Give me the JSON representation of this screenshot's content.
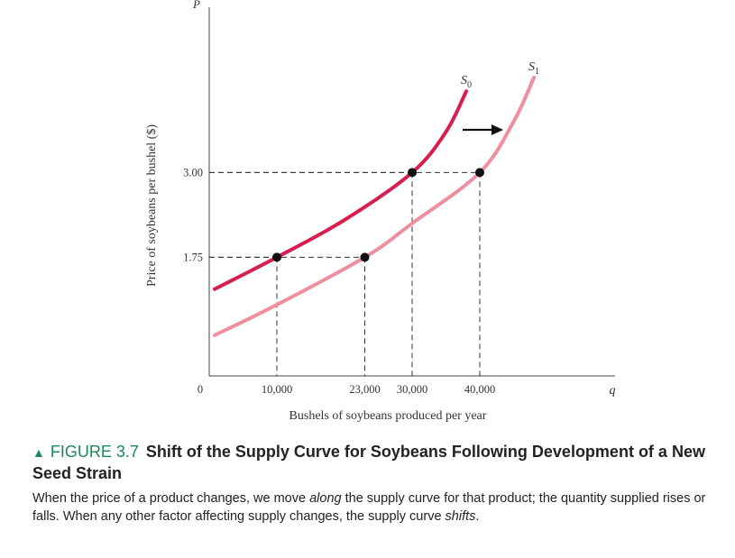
{
  "chart_data": {
    "type": "line",
    "ylabel": "Price of soybeans per bushel ($)",
    "xlabel": "Bushels of soybeans produced per year",
    "y_axis_symbol": "P",
    "x_axis_symbol": "q",
    "origin_label": "0",
    "xlim": [
      0,
      50000
    ],
    "ylim": [
      0,
      4.5
    ],
    "y_ticks": [
      {
        "value": 1.75,
        "label": "1.75"
      },
      {
        "value": 3.0,
        "label": "3.00"
      }
    ],
    "x_ticks": [
      {
        "value": 10000,
        "label": "10,000"
      },
      {
        "value": 23000,
        "label": "23,000"
      },
      {
        "value": 30000,
        "label": "30,000"
      },
      {
        "value": 40000,
        "label": "40,000"
      }
    ],
    "series": [
      {
        "name": "S",
        "subscript": "0",
        "color": "#d81e4f",
        "points": [
          [
            800,
            1.28
          ],
          [
            10000,
            1.75
          ],
          [
            20000,
            2.3
          ],
          [
            30000,
            3.0
          ],
          [
            35000,
            3.6
          ],
          [
            38000,
            4.2
          ]
        ]
      },
      {
        "name": "S",
        "subscript": "1",
        "color": "#ee8fa0",
        "points": [
          [
            800,
            0.6
          ],
          [
            10000,
            1.05
          ],
          [
            23000,
            1.75
          ],
          [
            30000,
            2.25
          ],
          [
            40000,
            3.0
          ],
          [
            45000,
            3.75
          ],
          [
            48000,
            4.4
          ]
        ]
      }
    ],
    "highlight_points": [
      {
        "x": 10000,
        "y": 1.75
      },
      {
        "x": 23000,
        "y": 1.75
      },
      {
        "x": 30000,
        "y": 3.0
      },
      {
        "x": 40000,
        "y": 3.0
      }
    ],
    "shift_arrow": {
      "direction": "right"
    }
  },
  "caption": {
    "figure_label": "FIGURE 3.7",
    "title": "Shift of  the Supply Curve for Soybeans Following Development of a New Seed Strain",
    "desc_part1": "When the price of a product changes, we move ",
    "desc_em1": "along",
    "desc_part2": " the supply curve for that product; the quantity supplied rises or falls. When any other factor affecting supply changes, the supply curve ",
    "desc_em2": "shifts",
    "desc_part3": "."
  },
  "colors": {
    "axis": "#444444",
    "marker": "#111111"
  }
}
